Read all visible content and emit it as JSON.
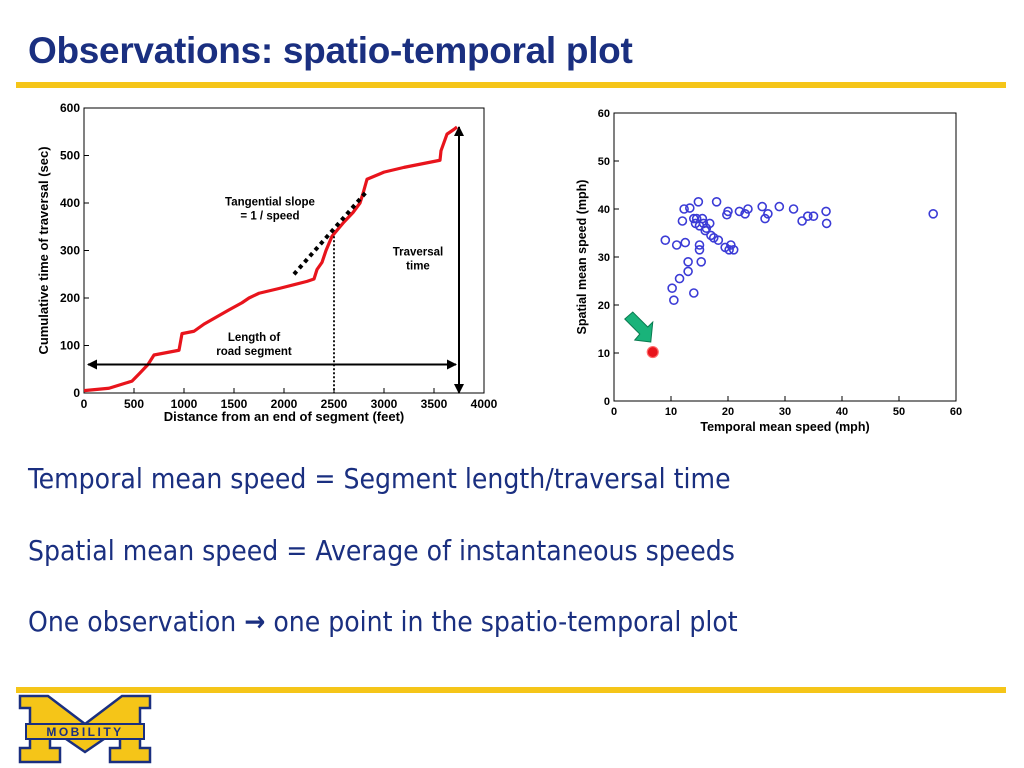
{
  "slide": {
    "title": "Observations: spatio-temporal plot",
    "bullets": [
      {
        "text": "Temporal mean speed = Segment length/traversal time"
      },
      {
        "text": "Spatial mean speed = Average of instantaneous speeds"
      },
      {
        "pre": "One observation",
        "arrow": "→",
        "post": "one point in the spatio-temporal plot"
      }
    ],
    "logo_text": "MOBILITY"
  },
  "colors": {
    "title": "#1a2f80",
    "rule": "#f5c518",
    "curve": "#e8141c",
    "scatter": "#3b3bd6",
    "highlight": "#e8141c",
    "callout_arrow": "#19b37a",
    "logo_blue": "#1a2f80",
    "logo_gold": "#f5c518"
  },
  "chart_data": [
    {
      "type": "line",
      "xlabel": "Distance from an end of segment (feet)",
      "ylabel": "Cumulative time of traversal (sec)",
      "xlim": [
        0,
        4000
      ],
      "ylim": [
        0,
        600
      ],
      "xticks": [
        0,
        500,
        1000,
        1500,
        2000,
        2500,
        3000,
        3500,
        4000
      ],
      "yticks": [
        0,
        100,
        200,
        300,
        400,
        500,
        600
      ],
      "series": [
        {
          "x": [
            0,
            250,
            480,
            550,
            640,
            700,
            950,
            980,
            1100,
            1200,
            1450,
            1580,
            1650,
            1750,
            1950,
            2100,
            2230,
            2300,
            2330,
            2380,
            2420,
            2480,
            2540,
            2600,
            2690,
            2760,
            2790,
            2830,
            3000,
            3200,
            3560,
            3570,
            3630,
            3700,
            3730
          ],
          "y": [
            5,
            10,
            25,
            40,
            60,
            80,
            90,
            125,
            130,
            145,
            175,
            190,
            200,
            210,
            220,
            228,
            235,
            240,
            260,
            275,
            300,
            330,
            345,
            360,
            380,
            400,
            420,
            450,
            465,
            475,
            490,
            510,
            545,
            555,
            560
          ]
        }
      ],
      "annotations": [
        {
          "label": "Tangential slope",
          "label2": "= 1 / speed"
        },
        {
          "label": "Traversal",
          "label2": "time"
        },
        {
          "label": "Length of",
          "label2": "road segment"
        }
      ],
      "tangent_line": {
        "x": [
          2100,
          2830
        ],
        "y": [
          250,
          425
        ]
      },
      "dotted_vertical_x": 2500,
      "length_arrow_y": 60,
      "time_arrow_x": 3750,
      "time_arrow_y": [
        0,
        560
      ]
    },
    {
      "type": "scatter",
      "xlabel": "Temporal mean speed (mph)",
      "ylabel": "Spatial mean speed (mph)",
      "xlim": [
        0,
        60
      ],
      "ylim": [
        0,
        60
      ],
      "xticks": [
        0,
        10,
        20,
        30,
        40,
        50,
        60
      ],
      "yticks": [
        0,
        10,
        20,
        30,
        40,
        50,
        60
      ],
      "series": [
        {
          "x": [
            9,
            10.2,
            10.5,
            11,
            11.5,
            12,
            12.3,
            12.5,
            13,
            13,
            13.3,
            14,
            14,
            14.3,
            14.5,
            14.8,
            15,
            15,
            15,
            15.3,
            15.5,
            15.7,
            16,
            16.2,
            16.8,
            17,
            17.5,
            18,
            18.3,
            19.5,
            19.8,
            20,
            20.2,
            20.5,
            21,
            22,
            23,
            23.5,
            26,
            26.5,
            27,
            29,
            31.5,
            33,
            34,
            35,
            37.2,
            37.3,
            56
          ],
          "y": [
            33.5,
            23.5,
            21,
            32.5,
            25.5,
            37.5,
            40,
            33,
            27,
            29,
            40.2,
            38,
            22.5,
            37,
            38,
            41.5,
            31.5,
            32.5,
            36.5,
            29,
            38,
            37,
            35.5,
            36,
            37,
            34.5,
            34,
            41.5,
            33.5,
            32,
            38.8,
            39.5,
            31.5,
            32.5,
            31.5,
            39.5,
            39,
            40,
            40.5,
            38,
            39,
            40.5,
            40,
            37.5,
            38.5,
            38.5,
            39.5,
            37,
            39
          ]
        },
        {
          "x": [
            6.8
          ],
          "y": [
            10.2
          ]
        }
      ]
    }
  ]
}
